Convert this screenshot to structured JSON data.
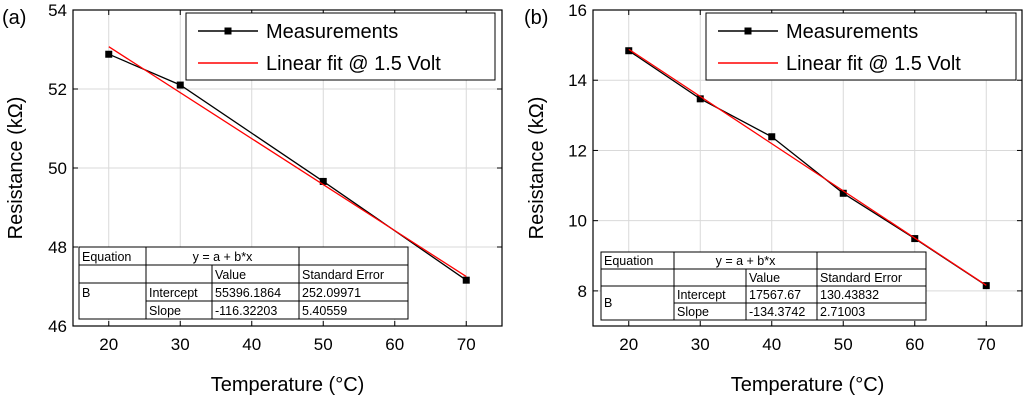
{
  "chart_data": [
    {
      "panel_label": "(a)",
      "type": "line",
      "xlabel": "Temperature (°C)",
      "ylabel": "Resistance (kΩ)",
      "xlim": [
        15,
        75
      ],
      "ylim": [
        46,
        54
      ],
      "xticks": [
        20,
        30,
        40,
        50,
        60,
        70
      ],
      "yticks": [
        46,
        48,
        50,
        52,
        54
      ],
      "grid": true,
      "legend_position": "top-right",
      "series": [
        {
          "name": "Measurements",
          "color": "#000000",
          "marker": "square",
          "x": [
            20,
            30,
            50,
            70
          ],
          "y": [
            52.88,
            52.1,
            49.66,
            47.16
          ]
        },
        {
          "name": "Linear fit @ 1.5 Volt",
          "color": "#ff0000",
          "marker": "none",
          "x": [
            20,
            70
          ],
          "y": [
            53.07,
            47.25
          ]
        }
      ],
      "fit_table": {
        "equation_label": "Equation",
        "equation": "y = a + b*x",
        "headers": [
          "Value",
          "Standard Error"
        ],
        "parameter": "B",
        "rows": [
          {
            "name": "Intercept",
            "value": "55396.1864",
            "error": "252.09971"
          },
          {
            "name": "Slope",
            "value": "-116.32203",
            "error": "5.40559"
          }
        ]
      }
    },
    {
      "panel_label": "(b)",
      "type": "line",
      "xlabel": "Temperature (°C)",
      "ylabel": "Resistance (kΩ)",
      "xlim": [
        15,
        75
      ],
      "ylim": [
        7,
        16
      ],
      "xticks": [
        20,
        30,
        40,
        50,
        60,
        70
      ],
      "yticks": [
        8,
        10,
        12,
        14,
        16
      ],
      "grid": true,
      "legend_position": "top-right",
      "series": [
        {
          "name": "Measurements",
          "color": "#000000",
          "marker": "square",
          "x": [
            20,
            30,
            40,
            50,
            60,
            70
          ],
          "y": [
            14.84,
            13.47,
            12.39,
            10.78,
            9.49,
            8.15
          ]
        },
        {
          "name": "Linear fit @ 1.5 Volt",
          "color": "#ff0000",
          "marker": "none",
          "x": [
            20,
            70
          ],
          "y": [
            14.88,
            8.16
          ]
        }
      ],
      "fit_table": {
        "equation_label": "Equation",
        "equation": "y = a + b*x",
        "headers": [
          "Value",
          "Standard Error"
        ],
        "parameter": "B",
        "rows": [
          {
            "name": "Intercept",
            "value": "17567.67",
            "error": "130.43832"
          },
          {
            "name": "Slope",
            "value": "-134.3742",
            "error": "2.71003"
          }
        ]
      }
    }
  ]
}
